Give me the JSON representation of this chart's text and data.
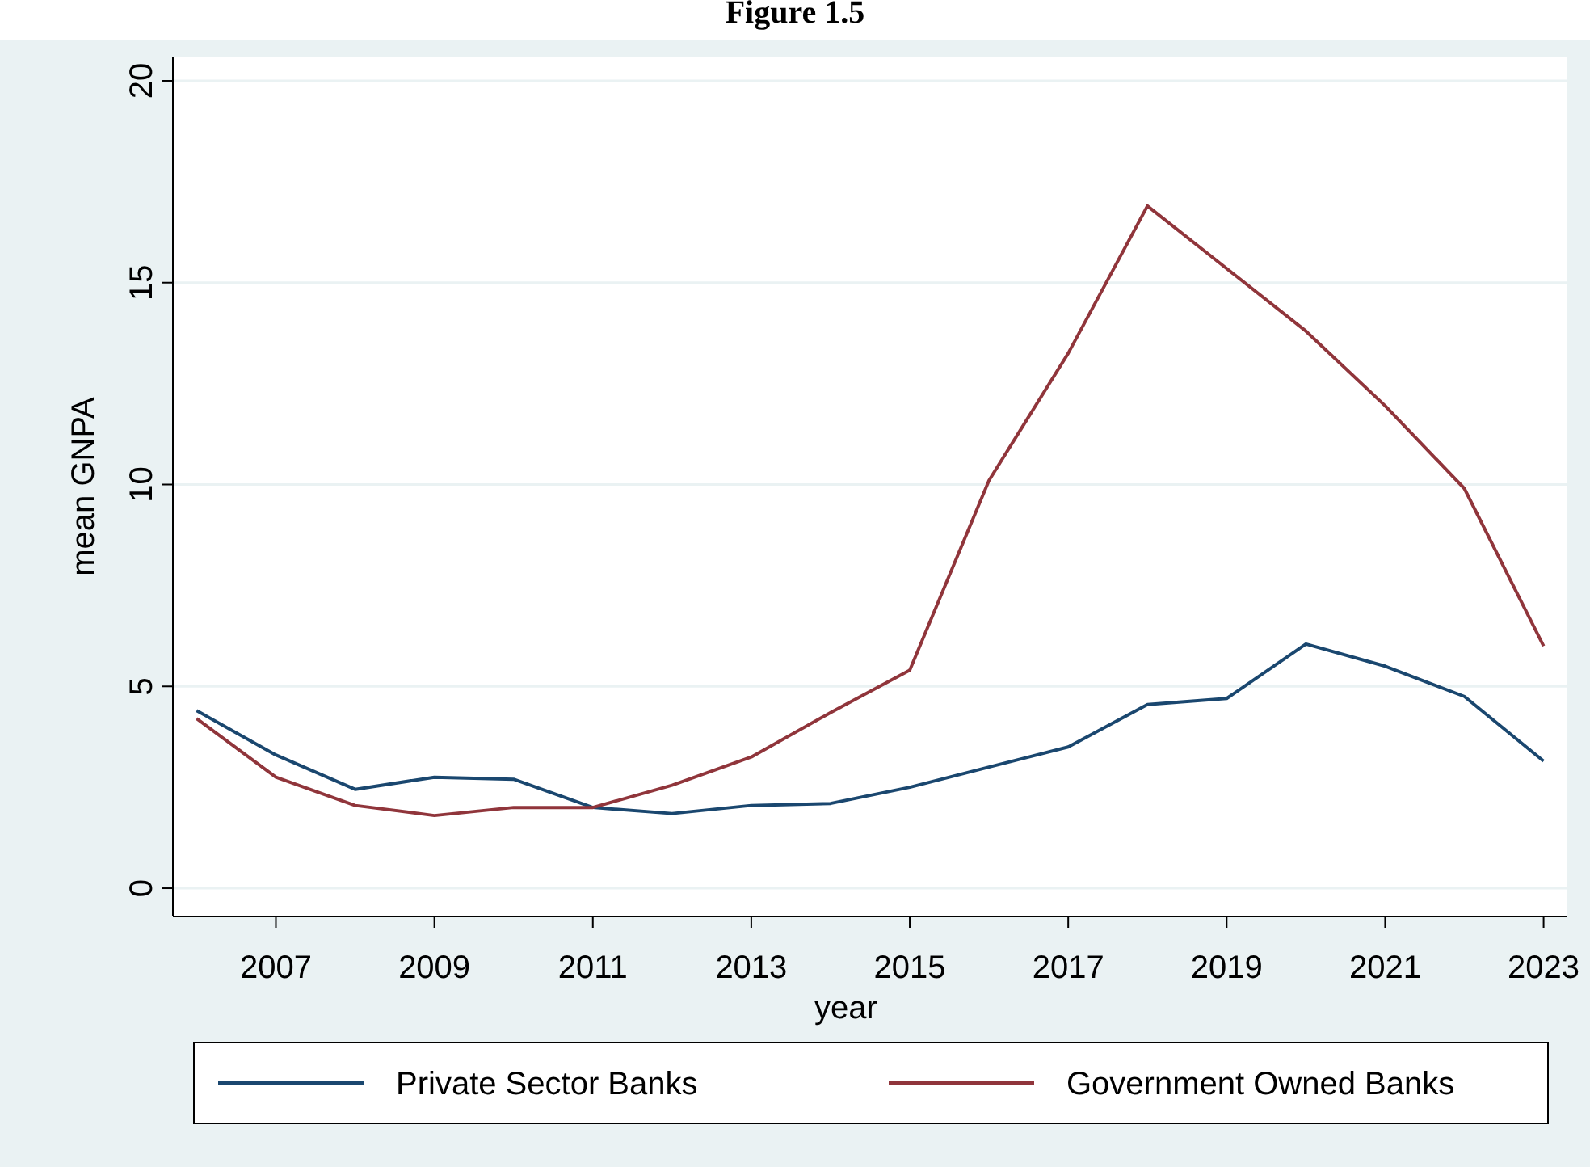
{
  "chart_data": {
    "type": "line",
    "title": "Figure 1.5",
    "xlabel": "year",
    "ylabel": "mean GNPA",
    "x": [
      2006,
      2007,
      2008,
      2009,
      2010,
      2011,
      2012,
      2013,
      2014,
      2015,
      2016,
      2017,
      2018,
      2019,
      2020,
      2021,
      2022,
      2023
    ],
    "xlim": [
      2005.7,
      2023.3
    ],
    "xticks": [
      2007,
      2009,
      2011,
      2013,
      2015,
      2017,
      2019,
      2021,
      2023
    ],
    "ylim": [
      -0.7,
      20.6
    ],
    "yticks": [
      0,
      5,
      10,
      15,
      20
    ],
    "grid": "y",
    "legend": "bottom",
    "line_style": "solid",
    "marker": "none",
    "series": [
      {
        "name": "Private Sector Banks",
        "color": "#1a476f",
        "values": [
          4.4,
          3.3,
          2.45,
          2.75,
          2.7,
          2.0,
          1.85,
          2.05,
          2.1,
          2.5,
          3.0,
          3.5,
          4.55,
          4.7,
          6.05,
          5.5,
          4.75,
          3.15
        ]
      },
      {
        "name": "Government Owned Banks",
        "color": "#90353b",
        "values": [
          4.2,
          2.75,
          2.05,
          1.8,
          2.0,
          2.0,
          2.55,
          3.25,
          4.35,
          5.4,
          10.1,
          13.25,
          16.9,
          15.35,
          13.8,
          11.95,
          9.9,
          6.0
        ]
      }
    ]
  }
}
